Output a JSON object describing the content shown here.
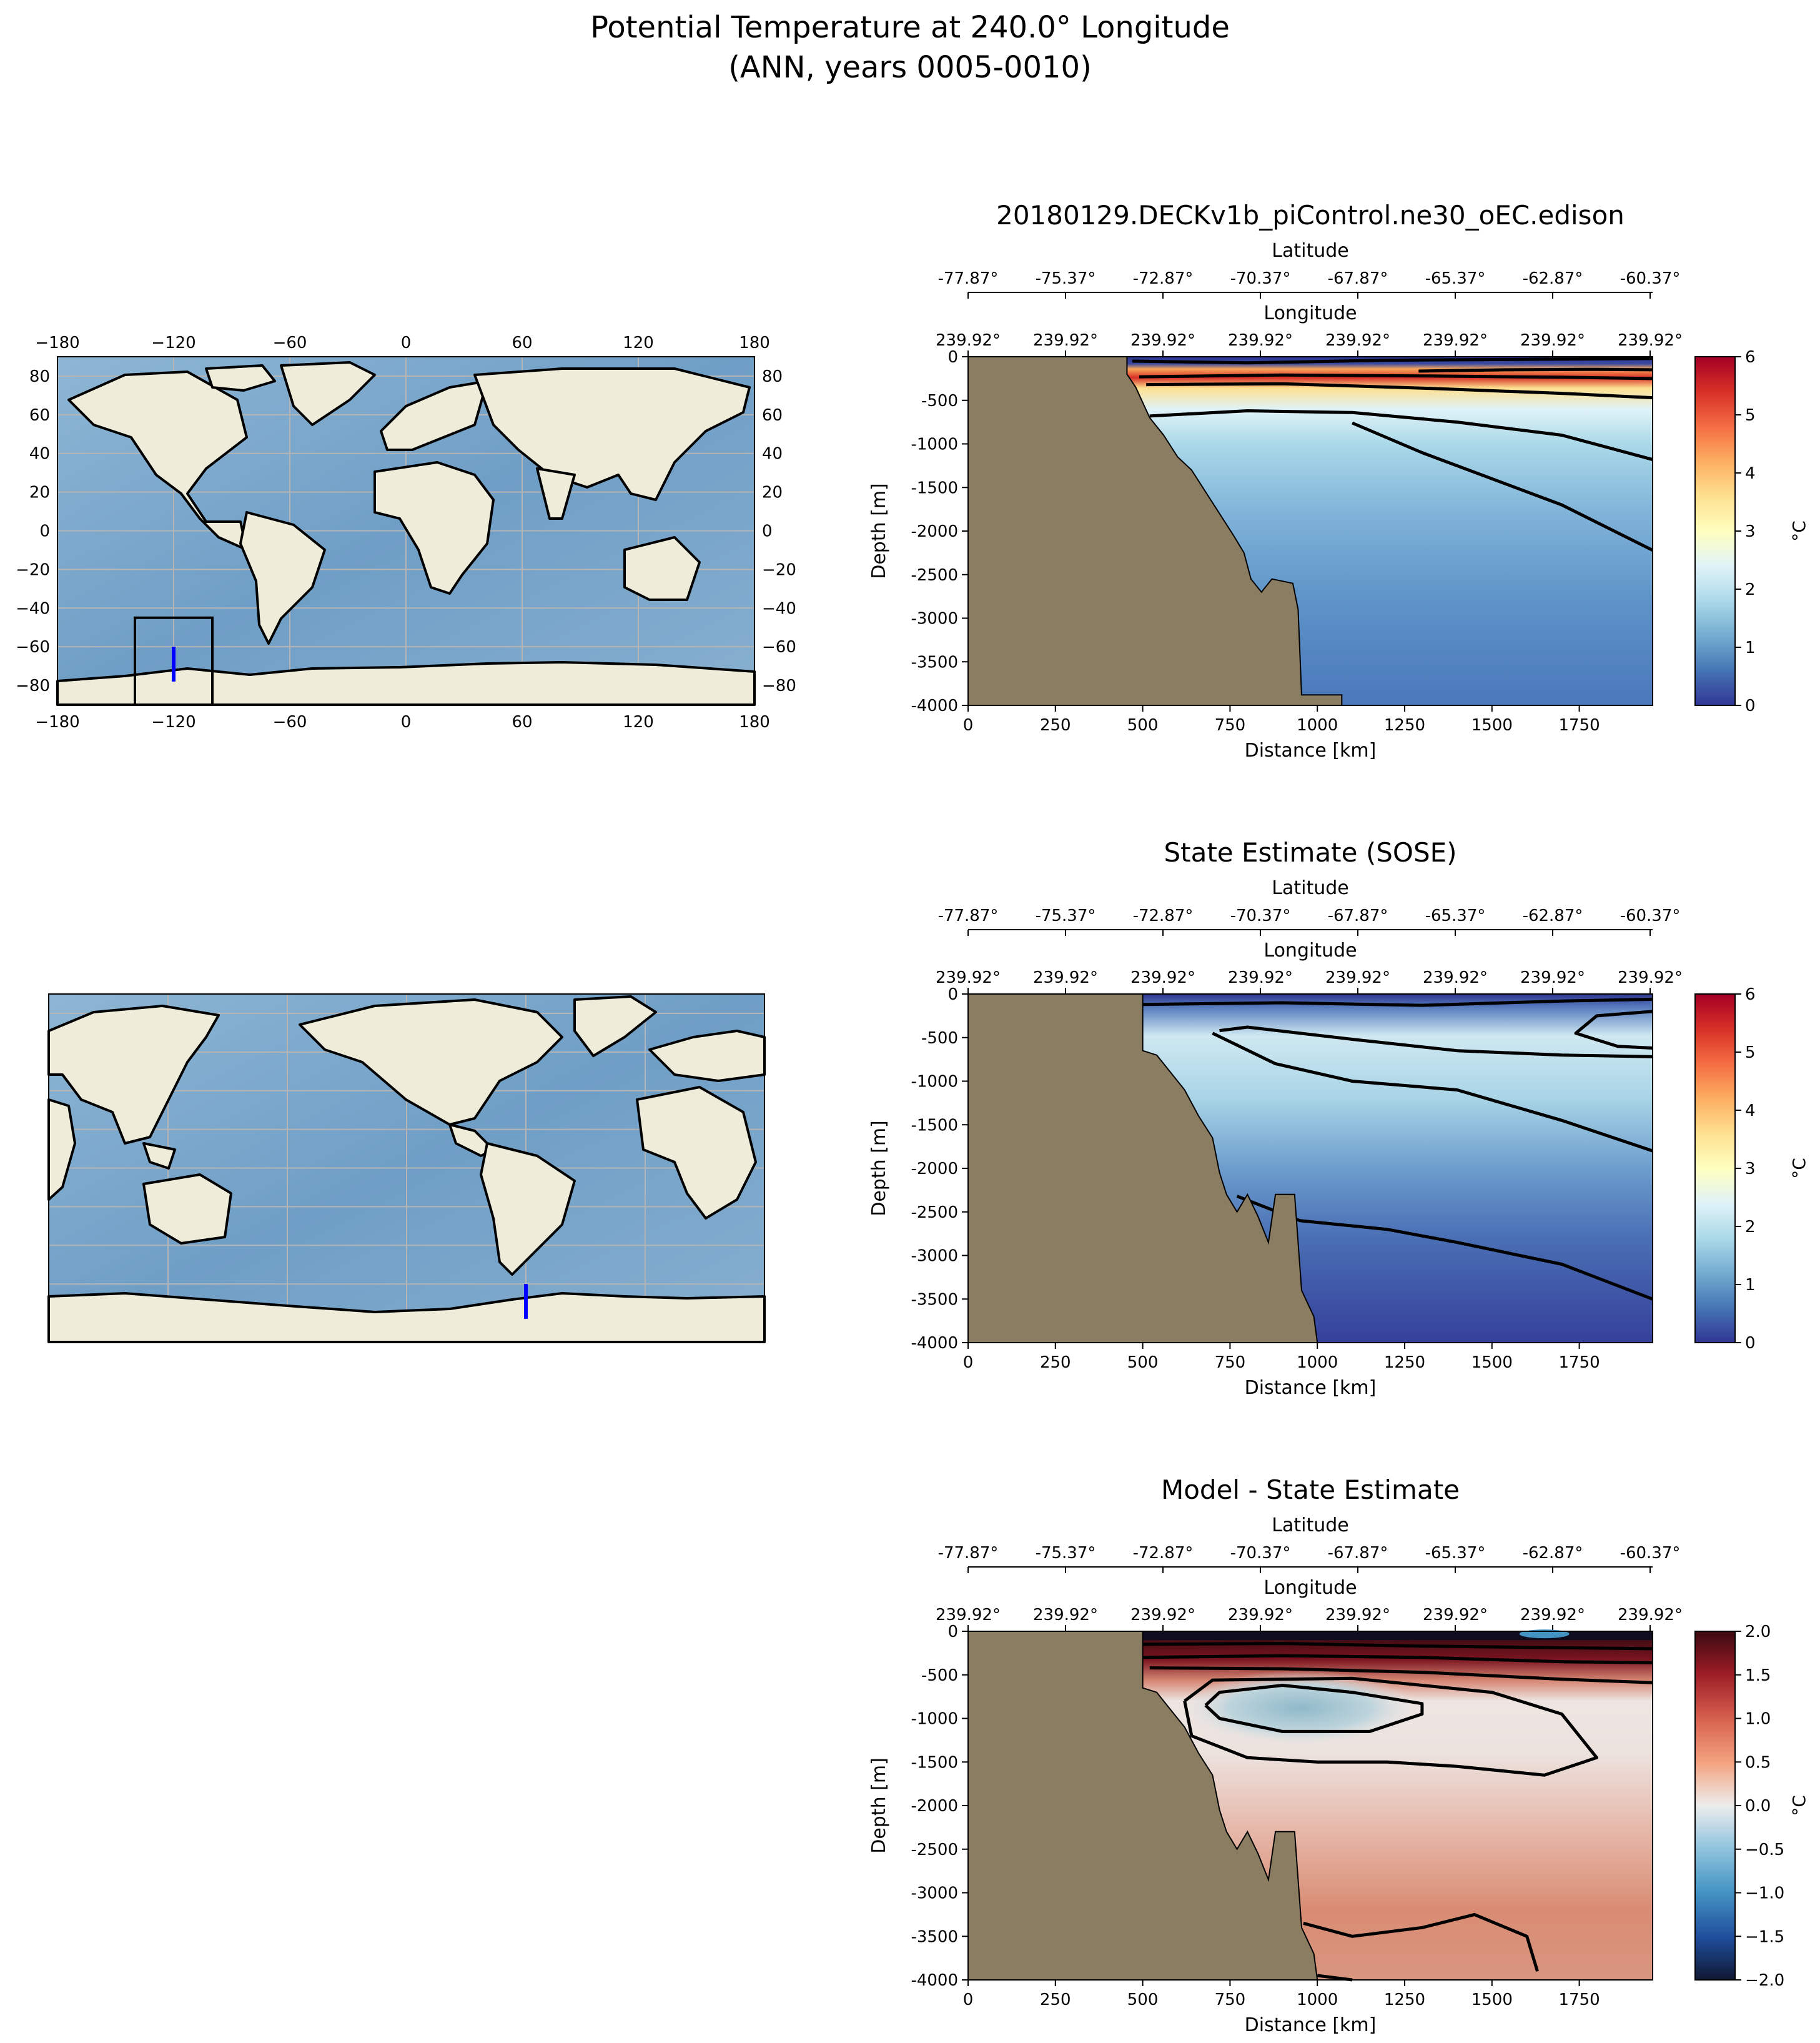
{
  "figure": {
    "title_line1": "Potential Temperature at 240.0° Longitude",
    "title_line2": "(ANN, years 0005-0010)"
  },
  "colors": {
    "land": "#8b7d62",
    "map_ocean": "#7ea7c9",
    "map_land": "#efedda",
    "section_line": "#0000ff",
    "region_box": "#000000"
  },
  "map1": {
    "lon_ticks": [
      "−180",
      "−120",
      "−60",
      "0",
      "60",
      "120",
      "180"
    ],
    "lat_ticks": [
      "80",
      "60",
      "40",
      "20",
      "0",
      "−20",
      "−40",
      "−60",
      "−80"
    ],
    "central_longitude": 0,
    "section": {
      "lon": -120,
      "lat_from": -60,
      "lat_to": -78
    },
    "region": {
      "lon_min": -140,
      "lon_max": -100,
      "lat_min": -90,
      "lat_max": -45
    }
  },
  "map2": {
    "central_longitude": 180,
    "section": {
      "lon": -120,
      "lat_from": -60,
      "lat_to": -78
    }
  },
  "chart_data": [
    {
      "type": "heatmap",
      "title": "20180129.DECKv1b_piControl.ne30_oEC.edison",
      "xlabel": "Distance [km]",
      "ylabel": "Depth [m]",
      "top_label_lat": "Latitude",
      "top_label_lon": "Longitude",
      "lat_ticks": [
        "-77.87°",
        "-75.37°",
        "-72.87°",
        "-70.37°",
        "-67.87°",
        "-65.37°",
        "-62.87°",
        "-60.37°"
      ],
      "lon_ticks": [
        "239.92°",
        "239.92°",
        "239.92°",
        "239.92°",
        "239.92°",
        "239.92°",
        "239.92°",
        "239.92°"
      ],
      "x_ticks": [
        0,
        250,
        500,
        750,
        1000,
        1250,
        1500,
        1750
      ],
      "y_ticks": [
        0,
        -500,
        -1000,
        -1500,
        -2000,
        -2500,
        -3000,
        -3500,
        -4000
      ],
      "xlim": [
        0,
        1960
      ],
      "ylim": [
        -4000,
        0
      ],
      "colorbar": {
        "label": "°C",
        "ticks": [
          0,
          1,
          2,
          3,
          4,
          5,
          6
        ],
        "range": [
          0,
          6
        ],
        "colormap": "RdYlBu_r"
      },
      "land_boundary": [
        [
          0,
          -4000
        ],
        [
          0,
          0
        ],
        [
          455,
          0
        ],
        [
          455,
          -200
        ],
        [
          480,
          -350
        ],
        [
          520,
          -700
        ],
        [
          560,
          -900
        ],
        [
          600,
          -1150
        ],
        [
          640,
          -1300
        ],
        [
          680,
          -1550
        ],
        [
          720,
          -1800
        ],
        [
          760,
          -2050
        ],
        [
          790,
          -2250
        ],
        [
          810,
          -2550
        ],
        [
          840,
          -2700
        ],
        [
          870,
          -2550
        ],
        [
          930,
          -2600
        ],
        [
          945,
          -2900
        ],
        [
          955,
          -3880
        ],
        [
          1070,
          -3880
        ],
        [
          1070,
          -4000
        ]
      ],
      "contours": [
        {
          "level": 0.5,
          "points": [
            [
              470,
              -50
            ],
            [
              800,
              -70
            ],
            [
              1200,
              -40
            ],
            [
              1960,
              -20
            ]
          ]
        },
        {
          "level": 5,
          "points": [
            [
              1290,
              -165
            ],
            [
              1540,
              -150
            ],
            [
              1800,
              -145
            ],
            [
              1960,
              -150
            ]
          ]
        },
        {
          "level": 4,
          "points": [
            [
              490,
              -230
            ],
            [
              900,
              -210
            ],
            [
              1300,
              -220
            ],
            [
              1700,
              -235
            ],
            [
              1960,
              -250
            ]
          ]
        },
        {
          "level": 3,
          "points": [
            [
              510,
              -320
            ],
            [
              900,
              -310
            ],
            [
              1300,
              -360
            ],
            [
              1700,
              -420
            ],
            [
              1960,
              -470
            ]
          ]
        },
        {
          "level": 2,
          "points": [
            [
              520,
              -680
            ],
            [
              800,
              -620
            ],
            [
              1100,
              -640
            ],
            [
              1400,
              -750
            ],
            [
              1700,
              -900
            ],
            [
              1960,
              -1180
            ]
          ]
        },
        {
          "level": 1,
          "points": [
            [
              1100,
              -760
            ],
            [
              1300,
              -1100
            ],
            [
              1700,
              -1700
            ],
            [
              1960,
              -2220
            ]
          ]
        }
      ]
    },
    {
      "type": "heatmap",
      "title": "State Estimate (SOSE)",
      "xlabel": "Distance [km]",
      "ylabel": "Depth [m]",
      "top_label_lat": "Latitude",
      "top_label_lon": "Longitude",
      "lat_ticks": [
        "-77.87°",
        "-75.37°",
        "-72.87°",
        "-70.37°",
        "-67.87°",
        "-65.37°",
        "-62.87°",
        "-60.37°"
      ],
      "lon_ticks": [
        "239.92°",
        "239.92°",
        "239.92°",
        "239.92°",
        "239.92°",
        "239.92°",
        "239.92°",
        "239.92°"
      ],
      "x_ticks": [
        0,
        250,
        500,
        750,
        1000,
        1250,
        1500,
        1750
      ],
      "y_ticks": [
        0,
        -500,
        -1000,
        -1500,
        -2000,
        -2500,
        -3000,
        -3500,
        -4000
      ],
      "xlim": [
        0,
        1960
      ],
      "ylim": [
        -4000,
        0
      ],
      "colorbar": {
        "label": "°C",
        "ticks": [
          0,
          1,
          2,
          3,
          4,
          5,
          6
        ],
        "range": [
          0,
          6
        ],
        "colormap": "RdYlBu_r"
      },
      "land_boundary": [
        [
          0,
          -4000
        ],
        [
          0,
          0
        ],
        [
          500,
          0
        ],
        [
          500,
          -650
        ],
        [
          540,
          -700
        ],
        [
          580,
          -900
        ],
        [
          620,
          -1100
        ],
        [
          660,
          -1400
        ],
        [
          700,
          -1650
        ],
        [
          720,
          -2050
        ],
        [
          740,
          -2300
        ],
        [
          770,
          -2500
        ],
        [
          800,
          -2300
        ],
        [
          830,
          -2550
        ],
        [
          860,
          -2850
        ],
        [
          880,
          -2300
        ],
        [
          935,
          -2300
        ],
        [
          955,
          -3400
        ],
        [
          990,
          -3700
        ],
        [
          1000,
          -4000
        ]
      ],
      "contours": [
        {
          "level": 0.5,
          "points": [
            [
              500,
              -120
            ],
            [
              900,
              -100
            ],
            [
              1300,
              -130
            ],
            [
              1700,
              -80
            ],
            [
              1960,
              -60
            ]
          ]
        },
        {
          "level": 2,
          "points": [
            [
              1960,
              -200
            ],
            [
              1800,
              -250
            ],
            [
              1740,
              -450
            ],
            [
              1860,
              -600
            ],
            [
              1960,
              -620
            ]
          ]
        },
        {
          "level": 1.5,
          "points": [
            [
              720,
              -420
            ],
            [
              800,
              -380
            ],
            [
              1100,
              -520
            ],
            [
              1400,
              -650
            ],
            [
              1700,
              -700
            ],
            [
              1960,
              -720
            ]
          ]
        },
        {
          "level": 1,
          "points": [
            [
              700,
              -450
            ],
            [
              880,
              -800
            ],
            [
              1100,
              -1000
            ],
            [
              1400,
              -1100
            ],
            [
              1700,
              -1450
            ],
            [
              1960,
              -1800
            ]
          ]
        },
        {
          "level": 0.5,
          "points": [
            [
              770,
              -2320
            ],
            [
              950,
              -2600
            ],
            [
              1200,
              -2700
            ],
            [
              1400,
              -2850
            ],
            [
              1700,
              -3100
            ],
            [
              1960,
              -3500
            ]
          ]
        }
      ]
    },
    {
      "type": "heatmap",
      "title": "Model - State Estimate",
      "xlabel": "Distance [km]",
      "ylabel": "Depth [m]",
      "top_label_lat": "Latitude",
      "top_label_lon": "Longitude",
      "lat_ticks": [
        "-77.87°",
        "-75.37°",
        "-72.87°",
        "-70.37°",
        "-67.87°",
        "-65.37°",
        "-62.87°",
        "-60.37°"
      ],
      "lon_ticks": [
        "239.92°",
        "239.92°",
        "239.92°",
        "239.92°",
        "239.92°",
        "239.92°",
        "239.92°",
        "239.92°"
      ],
      "x_ticks": [
        0,
        250,
        500,
        750,
        1000,
        1250,
        1500,
        1750
      ],
      "y_ticks": [
        0,
        -500,
        -1000,
        -1500,
        -2000,
        -2500,
        -3000,
        -3500,
        -4000
      ],
      "xlim": [
        0,
        1960
      ],
      "ylim": [
        -4000,
        0
      ],
      "colorbar": {
        "label": "°C",
        "ticks": [
          -2.0,
          -1.5,
          -1.0,
          -0.5,
          0.0,
          0.5,
          1.0,
          1.5,
          2.0
        ],
        "tick_labels": [
          "−2.0",
          "−1.5",
          "−1.0",
          "−0.5",
          "0.0",
          "0.5",
          "1.0",
          "1.5",
          "2.0"
        ],
        "range": [
          -2,
          2
        ],
        "colormap": "RdBu_r"
      },
      "land_boundary": [
        [
          0,
          -4000
        ],
        [
          0,
          0
        ],
        [
          500,
          0
        ],
        [
          500,
          -650
        ],
        [
          540,
          -700
        ],
        [
          580,
          -900
        ],
        [
          620,
          -1100
        ],
        [
          660,
          -1400
        ],
        [
          700,
          -1650
        ],
        [
          720,
          -2050
        ],
        [
          740,
          -2300
        ],
        [
          770,
          -2500
        ],
        [
          800,
          -2300
        ],
        [
          830,
          -2550
        ],
        [
          860,
          -2850
        ],
        [
          880,
          -2300
        ],
        [
          935,
          -2300
        ],
        [
          955,
          -3400
        ],
        [
          990,
          -3700
        ],
        [
          1000,
          -4000
        ]
      ],
      "contours": [
        {
          "level": 1.5,
          "points": [
            [
              500,
              -150
            ],
            [
              900,
              -140
            ],
            [
              1300,
              -170
            ],
            [
              1960,
              -200
            ]
          ]
        },
        {
          "level": 1.0,
          "points": [
            [
              500,
              -300
            ],
            [
              900,
              -280
            ],
            [
              1300,
              -300
            ],
            [
              1700,
              -350
            ],
            [
              1960,
              -360
            ]
          ]
        },
        {
          "level": 0.5,
          "points": [
            [
              520,
              -420
            ],
            [
              900,
              -430
            ],
            [
              1300,
              -470
            ],
            [
              1700,
              -550
            ],
            [
              1960,
              -590
            ]
          ]
        },
        {
          "level": -0.25,
          "points": [
            [
              680,
              -850
            ],
            [
              720,
              -700
            ],
            [
              900,
              -620
            ],
            [
              1100,
              -700
            ],
            [
              1300,
              -830
            ],
            [
              1300,
              -950
            ],
            [
              1150,
              -1150
            ],
            [
              900,
              -1150
            ],
            [
              720,
              -1000
            ],
            [
              680,
              -850
            ]
          ]
        },
        {
          "level": 0.0,
          "points": [
            [
              620,
              -800
            ],
            [
              700,
              -560
            ],
            [
              1100,
              -540
            ],
            [
              1500,
              -700
            ],
            [
              1700,
              -950
            ],
            [
              1800,
              -1450
            ],
            [
              1650,
              -1650
            ],
            [
              1400,
              -1550
            ],
            [
              1200,
              -1500
            ],
            [
              1000,
              -1500
            ],
            [
              800,
              -1450
            ],
            [
              640,
              -1200
            ],
            [
              620,
              -800
            ]
          ]
        },
        {
          "level": 0.5,
          "points": [
            [
              960,
              -3350
            ],
            [
              1100,
              -3500
            ],
            [
              1300,
              -3400
            ],
            [
              1450,
              -3250
            ],
            [
              1600,
              -3500
            ],
            [
              1630,
              -3900
            ]
          ]
        },
        {
          "level": 0.5,
          "points": [
            [
              1000,
              -3950
            ],
            [
              1100,
              -4000
            ]
          ]
        }
      ]
    }
  ]
}
